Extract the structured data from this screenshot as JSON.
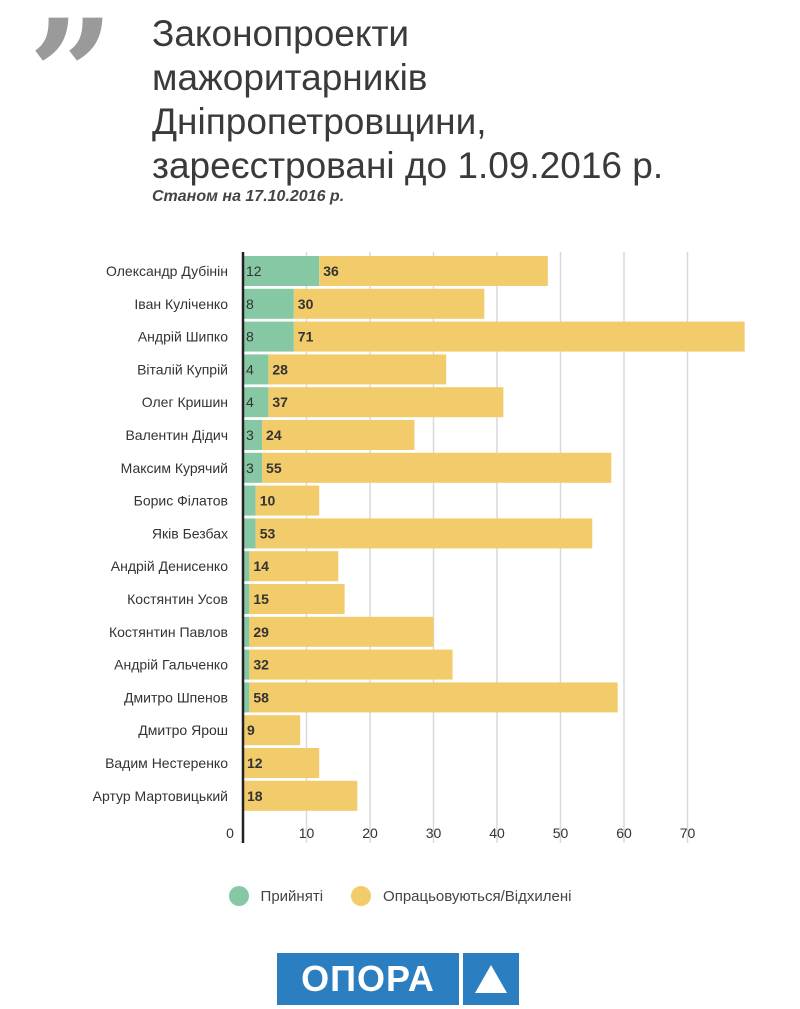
{
  "title": "Законопроекти\nмажоритарників\nДніпропетровщини,\nзареєстровані до 1.09.2016 р.",
  "subtitle": "Станом на 17.10.2016 р.",
  "colors": {
    "accepted": "#86c7a4",
    "pending": "#f2cb6b",
    "grid": "#d9d9d9",
    "axis": "#222222"
  },
  "chart_data": {
    "type": "bar",
    "orientation": "horizontal",
    "stacked": true,
    "categories": [
      "Олександр Дубінін",
      "Іван Куліченко",
      "Андрій Шипко",
      "Віталій Купрій",
      "Олег Кришин",
      "Валентин Дідич",
      "Максим Курячий",
      "Борис Філатов",
      "Яків Безбах",
      "Андрій Денисенко",
      "Костянтин Усов",
      "Костянтин Павлов",
      "Андрій Гальченко",
      "Дмитро Шпенов",
      "Дмитро Ярош",
      "Вадим Нестеренко",
      "Артур Мартовицький"
    ],
    "series": [
      {
        "name": "Прийняті",
        "values": [
          12,
          8,
          8,
          4,
          4,
          3,
          3,
          2,
          2,
          1,
          1,
          1,
          1,
          1,
          0,
          0,
          0
        ]
      },
      {
        "name": "Опрацьовуються/Відхилені",
        "values": [
          36,
          30,
          71,
          28,
          37,
          24,
          55,
          10,
          53,
          14,
          15,
          29,
          32,
          58,
          9,
          12,
          18
        ]
      }
    ],
    "labels_accepted": [
      "12",
      "8",
      "8",
      "4",
      "4",
      "3",
      "3",
      "",
      "",
      "",
      "",
      "",
      "",
      "",
      "",
      "",
      ""
    ],
    "labels_pending": [
      "36",
      "30",
      "71",
      "28",
      "37",
      "24",
      "55",
      "10",
      "53",
      "14",
      "15",
      "29",
      "32",
      "58",
      "9",
      "12",
      "18"
    ],
    "xticks": [
      0,
      10,
      20,
      30,
      40,
      50,
      60,
      70
    ],
    "xlim": [
      0,
      80
    ],
    "title": "",
    "xlabel": "",
    "ylabel": "",
    "legend": "bottom"
  },
  "legend": {
    "accepted_label": "Прийняті",
    "pending_label": "Опрацьовуються/Відхилені"
  },
  "logo": {
    "text": "ОПОРА"
  }
}
